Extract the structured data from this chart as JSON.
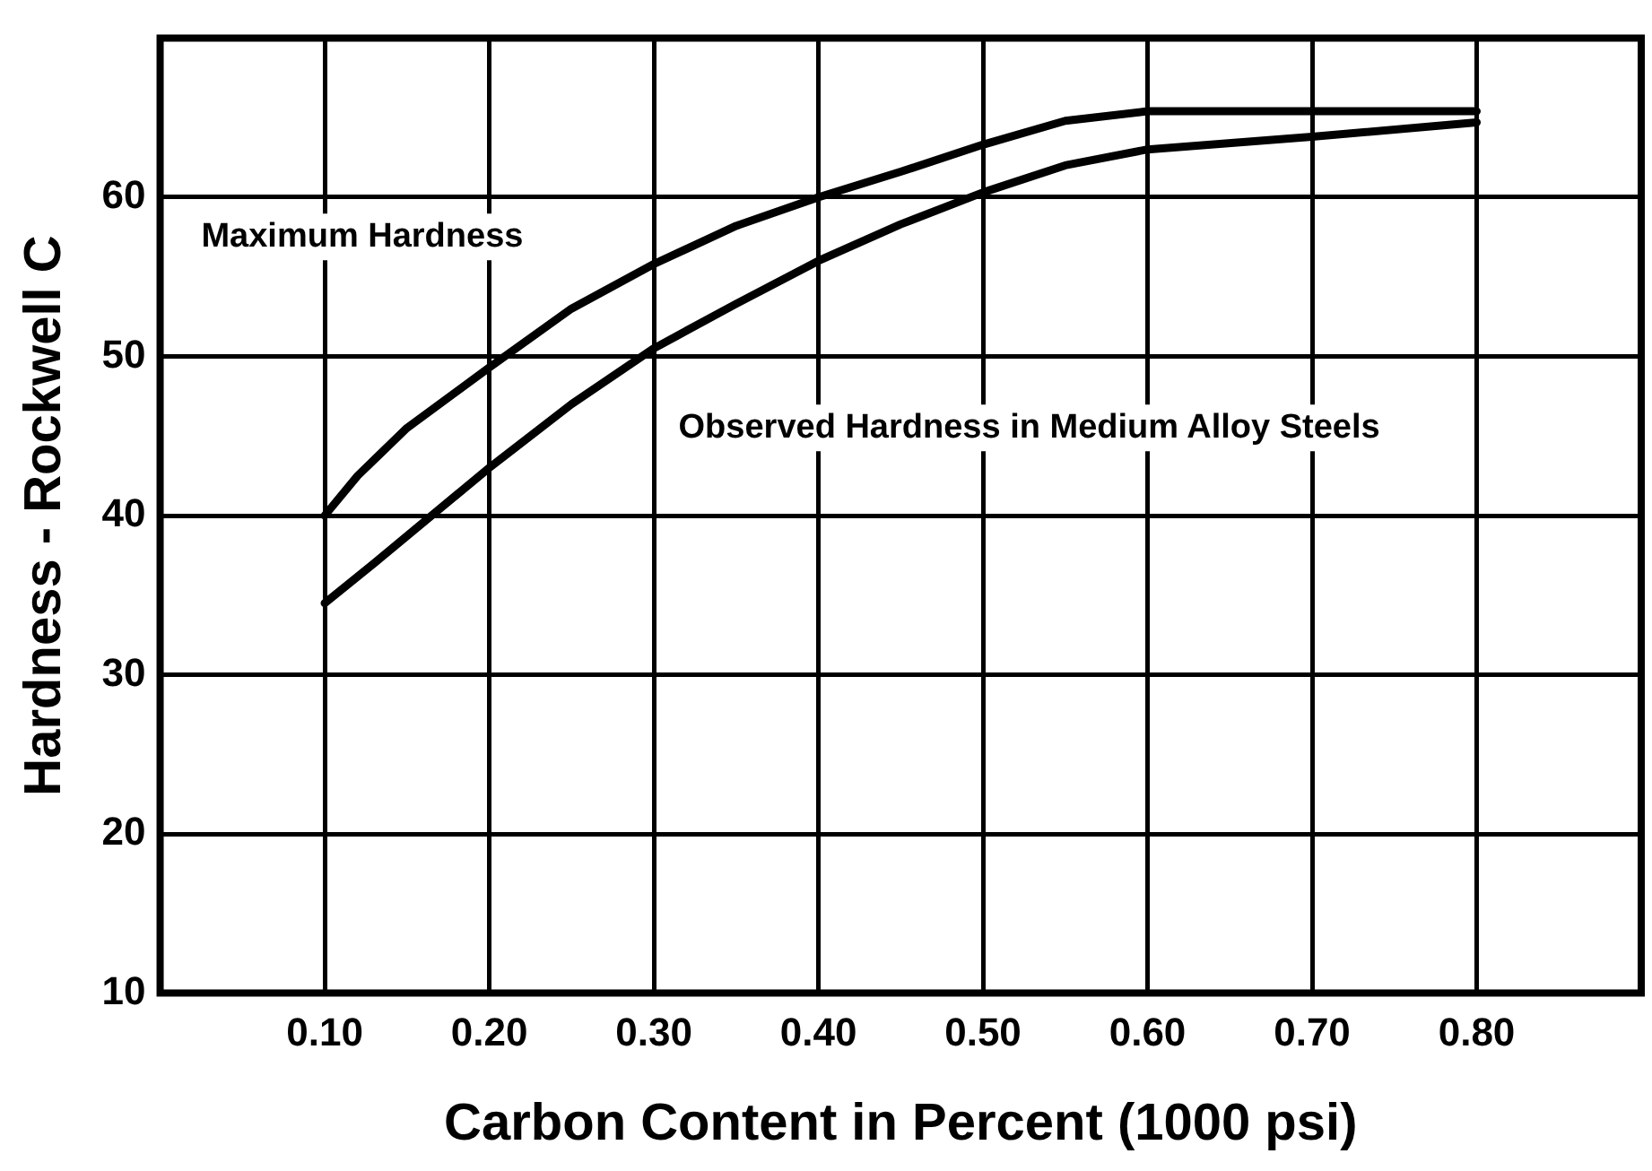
{
  "chart_data": {
    "type": "line",
    "xlabel": "Carbon Content in Percent (1000 psi)",
    "ylabel": "Hardness - Rockwell C",
    "xlim": [
      0,
      0.9
    ],
    "xticks": [
      {
        "value": 0.1,
        "label": "0.10"
      },
      {
        "value": 0.2,
        "label": "0.20"
      },
      {
        "value": 0.3,
        "label": "0.30"
      },
      {
        "value": 0.4,
        "label": "0.40"
      },
      {
        "value": 0.5,
        "label": "0.50"
      },
      {
        "value": 0.6,
        "label": "0.60"
      },
      {
        "value": 0.7,
        "label": "0.70"
      },
      {
        "value": 0.8,
        "label": "0.80"
      }
    ],
    "ylim": [
      10,
      70
    ],
    "yticks": [
      10,
      20,
      30,
      40,
      50,
      60,
      {
        "value": 70,
        "label": null
      }
    ],
    "grid": true,
    "legend": false,
    "marker": "none",
    "line_style": "solid",
    "series": [
      {
        "name": "Maximum Hardness",
        "color": "#000000",
        "x": [
          0.1,
          0.12,
          0.15,
          0.2,
          0.25,
          0.3,
          0.35,
          0.4,
          0.45,
          0.5,
          0.55,
          0.6,
          0.8
        ],
        "values": [
          40,
          42.5,
          45.5,
          49.3,
          53,
          55.8,
          58.2,
          60,
          61.6,
          63.3,
          64.8,
          65.4,
          65.4
        ]
      },
      {
        "name": "Observed Hardness in Medium Alloy Steels",
        "color": "#000000",
        "x": [
          0.1,
          0.13,
          0.2,
          0.25,
          0.3,
          0.35,
          0.4,
          0.45,
          0.5,
          0.55,
          0.6,
          0.7,
          0.8
        ],
        "values": [
          34.5,
          37,
          43,
          47,
          50.5,
          53.3,
          56,
          58.3,
          60.3,
          62,
          63,
          63.8,
          64.7
        ]
      }
    ]
  }
}
